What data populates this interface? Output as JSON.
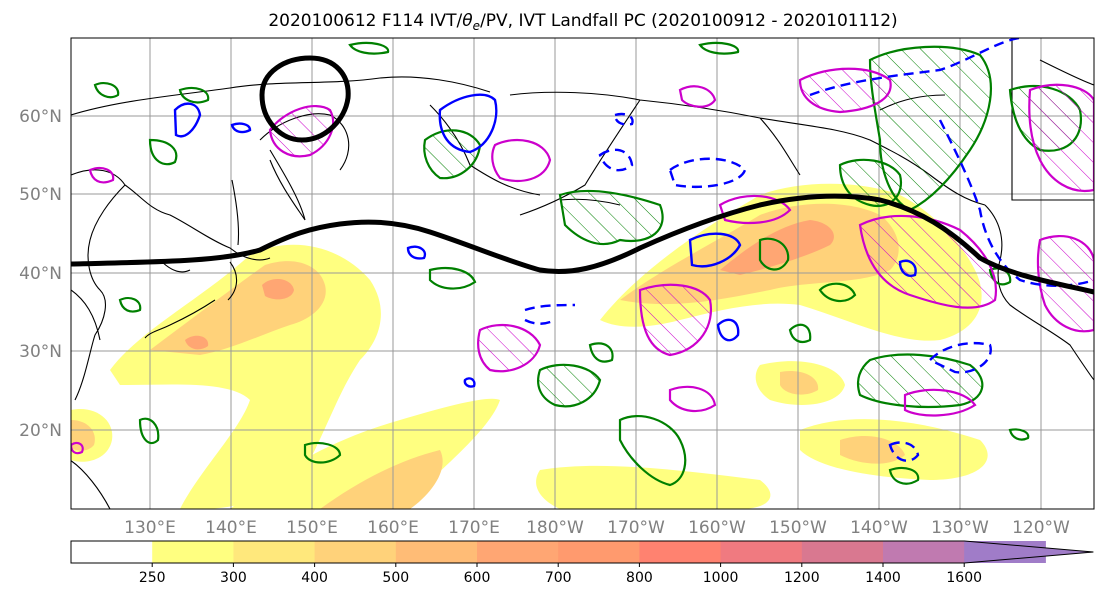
{
  "title": "2020100612 F114 IVT/θe/PV, IVT Landfall PC (2020100912 - 2020101112)",
  "title_prefix": "2020100612 F114 IVT/",
  "title_theta": "θ",
  "title_sub": "e",
  "title_suffix": "/PV, IVT Landfall PC (2020100912 - 2020101112)",
  "lat_labels": [
    "60°N",
    "50°N",
    "40°N",
    "30°N",
    "20°N"
  ],
  "lon_labels": [
    "130°E",
    "140°E",
    "150°E",
    "160°E",
    "170°E",
    "180°W",
    "170°W",
    "160°W",
    "150°W",
    "140°W",
    "130°W",
    "120°W"
  ],
  "colorbar": {
    "ticks": [
      "250",
      "300",
      "400",
      "500",
      "600",
      "700",
      "800",
      "1000",
      "1200",
      "1400",
      "1600"
    ],
    "colors": [
      "#ffffff",
      "#ffff80",
      "#ffe87c",
      "#ffd27a",
      "#ffbc76",
      "#ffa673",
      "#ff9a6e",
      "#ff8270",
      "#f07a80",
      "#d97890",
      "#c07ab0",
      "#a07cc8"
    ]
  },
  "contour_colors": {
    "ivt_fill_low": "#ffff80",
    "ivt_fill_mid": "#ffd27a",
    "ivt_fill_high": "#ffa673",
    "pv": "#cc00cc",
    "theta_e": "#0000ff",
    "landfall": "#008000",
    "jet": "#000000",
    "coast": "#000000"
  }
}
